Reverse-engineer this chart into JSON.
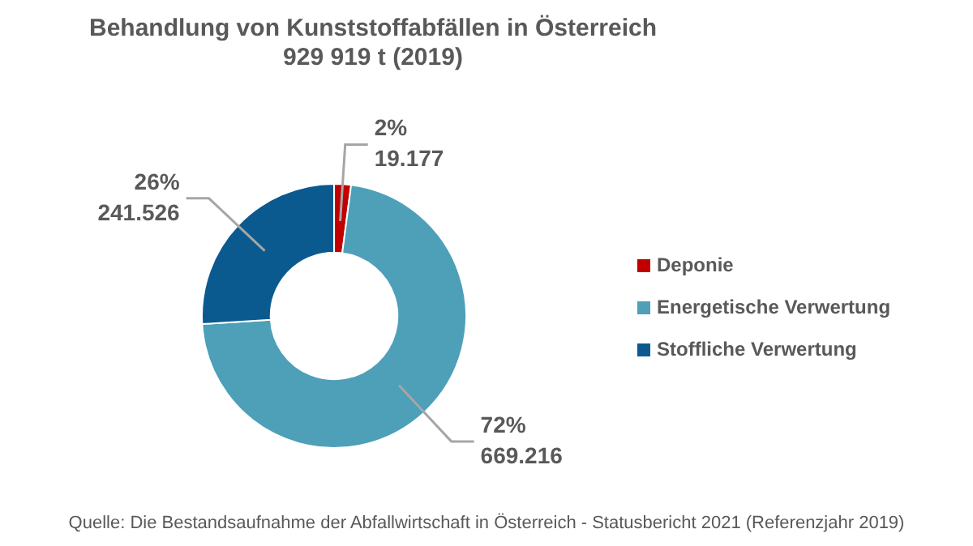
{
  "chart_data": {
    "type": "donut",
    "title": "Behandlung von Kunststoffabfällen in Österreich\n929 919 t (2019)",
    "categories": [
      "Deponie",
      "Energetische Verwertung",
      "Stoffliche Verwertung"
    ],
    "values": [
      19177,
      669216,
      241526
    ],
    "value_labels": [
      "2%\n19.177",
      "72%\n669.216",
      "26%\n241.526"
    ],
    "colors": [
      "#c00000",
      "#4e9fb8",
      "#0b5a8f"
    ],
    "legend": "right",
    "annotations": [
      "Quelle: Die Bestandsaufnahme der Abfallwirtschaft in Österreich - Statusbericht 2021 (Referenzjahr 2019)"
    ]
  }
}
